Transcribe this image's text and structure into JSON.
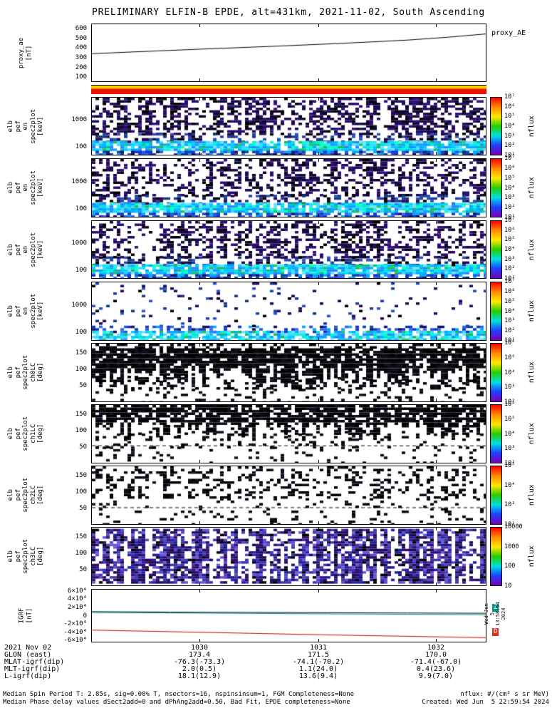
{
  "title": "PRELIMINARY ELFIN-B EPDE, alt=431km, 2021-11-02, South Ascending",
  "side_note": "Wed Jun  5 13:58:54 2024",
  "colors": {
    "colorbar_gradient": [
      "#ff0000",
      "#ff8c00",
      "#ffe800",
      "#28cc00",
      "#00e0e0",
      "#1f3fff",
      "#7a00b4"
    ],
    "axis": "#000000"
  },
  "palettes": {
    "dark": [
      "#000000",
      "#120428",
      "#23084d",
      "#1a1060",
      "#2e0b6e",
      "#0d0d30",
      "#35127a"
    ],
    "mix": [
      "#1a1060",
      "#23084d",
      "#1f3fa0",
      "#123c80",
      "#000000",
      "#2e4fc0"
    ],
    "blue": [
      "#1133cc",
      "#2255dd",
      "#0a43b0",
      "#3366ee",
      "#1a1060",
      "#00aaff"
    ],
    "bright": [
      "#00ccff",
      "#00aaff",
      "#35ddff",
      "#00e5df",
      "#2288ff",
      "#00ffc8",
      "#12c06a",
      "#6fe3ff",
      "#00b0ff"
    ],
    "black": [
      "#000000",
      "#08060d",
      "#120f1c"
    ],
    "ch3": [
      "#1a1060",
      "#35127a",
      "#2e0b6e",
      "#000000",
      "#4433aa",
      "#5a48cc",
      "#3a3aa0",
      "#23084d",
      "#6a58dd",
      "#2020a8"
    ]
  },
  "chart_data": [
    {
      "id": "proxy_ae",
      "type": "line",
      "left_label_lines": [
        "proxy_ae",
        "[nT]"
      ],
      "right_label": "proxy_AE",
      "ylim": [
        50,
        650
      ],
      "yticks": [
        {
          "v": 600,
          "label": "600"
        },
        {
          "v": 500,
          "label": "500"
        },
        {
          "v": 400,
          "label": "400"
        },
        {
          "v": 300,
          "label": "300"
        },
        {
          "v": 200,
          "label": "200"
        },
        {
          "v": 100,
          "label": "100"
        }
      ],
      "series": [
        {
          "name": "proxy_AE",
          "color": "#000000",
          "x": [
            0,
            0.1,
            0.2,
            0.3,
            0.4,
            0.5,
            0.6,
            0.7,
            0.8,
            0.9,
            1
          ],
          "y": [
            340,
            358,
            375,
            392,
            408,
            425,
            443,
            462,
            483,
            512,
            548
          ]
        }
      ]
    },
    {
      "id": "strip",
      "type": "strip",
      "colors": [
        "#000000",
        "#ffd700",
        "#ff8c00",
        "#e81200"
      ]
    },
    {
      "id": "en0",
      "type": "spectrogram",
      "left_label_lines": [
        "elb",
        "pef",
        "en",
        "spec2plot",
        "[keV]"
      ],
      "ylog": true,
      "ylim": [
        50,
        7000
      ],
      "yticks": [
        {
          "v": 1000,
          "label": "1000"
        },
        {
          "v": 100,
          "label": "100"
        }
      ],
      "colorbar": {
        "label": "nflux",
        "ticks": [
          "10⁷",
          "10⁶",
          "10⁵",
          "10⁴",
          "10³",
          "10²",
          "10¹"
        ]
      },
      "seed": 11,
      "bands": [
        {
          "y0": 0,
          "y1": 0.62,
          "density": 0.5,
          "palette": "dark"
        },
        {
          "y0": 0.62,
          "y1": 0.76,
          "density": 0.42,
          "palette": "mix"
        },
        {
          "y0": 0.76,
          "y1": 0.93,
          "density": 0.96,
          "palette": "bright"
        },
        {
          "y0": 0.93,
          "y1": 1,
          "density": 0.75,
          "palette": "blue"
        }
      ]
    },
    {
      "id": "en1",
      "type": "spectrogram",
      "left_label_lines": [
        "elb",
        "pef",
        "en",
        "spec2plot",
        "[keV]"
      ],
      "ylog": true,
      "ylim": [
        50,
        7000
      ],
      "yticks": [
        {
          "v": 1000,
          "label": "1000"
        },
        {
          "v": 100,
          "label": "100"
        }
      ],
      "colorbar": {
        "label": "nflux",
        "ticks": [
          "10⁷",
          "10⁶",
          "10⁵",
          "10⁴",
          "10³",
          "10²",
          "10¹"
        ]
      },
      "seed": 22,
      "bands": [
        {
          "y0": 0,
          "y1": 0.62,
          "density": 0.42,
          "palette": "dark"
        },
        {
          "y0": 0.62,
          "y1": 0.76,
          "density": 0.38,
          "palette": "mix"
        },
        {
          "y0": 0.76,
          "y1": 0.93,
          "density": 0.95,
          "palette": "bright"
        },
        {
          "y0": 0.93,
          "y1": 1,
          "density": 0.7,
          "palette": "blue"
        }
      ]
    },
    {
      "id": "en2",
      "type": "spectrogram",
      "left_label_lines": [
        "elb",
        "pef",
        "en",
        "spec2plot",
        "[keV]"
      ],
      "ylog": true,
      "ylim": [
        50,
        7000
      ],
      "yticks": [
        {
          "v": 1000,
          "label": "1000"
        },
        {
          "v": 100,
          "label": "100"
        }
      ],
      "colorbar": {
        "label": "nflux",
        "ticks": [
          "10⁷",
          "10⁶",
          "10⁵",
          "10⁴",
          "10³",
          "10²",
          "10¹"
        ]
      },
      "seed": 33,
      "bands": [
        {
          "y0": 0,
          "y1": 0.62,
          "density": 0.46,
          "palette": "dark"
        },
        {
          "y0": 0.62,
          "y1": 0.76,
          "density": 0.4,
          "palette": "mix"
        },
        {
          "y0": 0.76,
          "y1": 0.93,
          "density": 0.95,
          "palette": "bright"
        },
        {
          "y0": 0.93,
          "y1": 1,
          "density": 0.72,
          "palette": "blue"
        }
      ]
    },
    {
      "id": "en3",
      "type": "spectrogram",
      "left_label_lines": [
        "elb",
        "pef",
        "en",
        "spec2plot",
        "[keV]"
      ],
      "ylog": true,
      "ylim": [
        50,
        7000
      ],
      "yticks": [
        {
          "v": 1000,
          "label": "1000"
        },
        {
          "v": 100,
          "label": "100"
        }
      ],
      "colorbar": {
        "label": "nflux",
        "ticks": [
          "10⁷",
          "10⁶",
          "10⁵",
          "10⁴",
          "10³",
          "10²",
          "10¹"
        ]
      },
      "seed": 44,
      "bands": [
        {
          "y0": 0,
          "y1": 0.75,
          "density": 0.07,
          "palette": "mix"
        },
        {
          "y0": 0.75,
          "y1": 0.84,
          "density": 0.45,
          "palette": "blue"
        },
        {
          "y0": 0.84,
          "y1": 1,
          "density": 0.88,
          "palette": "bright"
        }
      ]
    },
    {
      "id": "ch0",
      "type": "spectrogram",
      "left_label_lines": [
        "elb",
        "pef",
        "spec2plot",
        "ch0LC",
        "[deg]"
      ],
      "ylim": [
        0,
        180
      ],
      "yticks": [
        {
          "v": 150,
          "label": "150"
        },
        {
          "v": 100,
          "label": "100"
        },
        {
          "v": 50,
          "label": "50"
        }
      ],
      "colorbar": {
        "label": "nflux",
        "ticks": [
          "10⁶",
          "10⁵",
          "10⁴",
          "10³",
          "10²"
        ]
      },
      "seed": 55,
      "bands": [
        {
          "y0": 0,
          "y1": 0.08,
          "density": 0.35,
          "palette": "black"
        },
        {
          "y0": 0.08,
          "y1": 0.58,
          "density": 0.93,
          "palette": "black",
          "ragged": true
        },
        {
          "y0": 0.58,
          "y1": 0.78,
          "density": 0.4,
          "palette": "black"
        },
        {
          "y0": 0.78,
          "y1": 1,
          "density": 0.15,
          "palette": "black"
        }
      ]
    },
    {
      "id": "ch1",
      "type": "spectrogram",
      "left_label_lines": [
        "elb",
        "pef",
        "spec2plot",
        "ch1LC",
        "[deg]"
      ],
      "ylim": [
        0,
        180
      ],
      "yticks": [
        {
          "v": 150,
          "label": "150"
        },
        {
          "v": 100,
          "label": "100"
        },
        {
          "v": 50,
          "label": "50"
        }
      ],
      "colorbar": {
        "label": "nflux",
        "ticks": [
          "10⁶",
          "10⁵",
          "10⁴",
          "10³",
          "10²"
        ]
      },
      "seed": 66,
      "dashed_lines": [
        0.7
      ],
      "bands": [
        {
          "y0": 0,
          "y1": 0.45,
          "density": 0.85,
          "palette": "black",
          "ragged": true
        },
        {
          "y0": 0.45,
          "y1": 0.72,
          "density": 0.2,
          "palette": "black"
        },
        {
          "y0": 0.72,
          "y1": 1,
          "density": 0.1,
          "palette": "black"
        }
      ]
    },
    {
      "id": "ch2",
      "type": "spectrogram",
      "left_label_lines": [
        "elb",
        "pef",
        "spec2plot",
        "ch2LC",
        "[deg]"
      ],
      "ylim": [
        0,
        180
      ],
      "yticks": [
        {
          "v": 150,
          "label": "150"
        },
        {
          "v": 100,
          "label": "100"
        },
        {
          "v": 50,
          "label": "50"
        }
      ],
      "colorbar": {
        "label": "nflux",
        "ticks": [
          "10⁵",
          "10⁴",
          "10³",
          "10²"
        ]
      },
      "seed": 77,
      "dashed_lines": [
        0.71
      ],
      "bands": [
        {
          "y0": 0,
          "y1": 0.55,
          "density": 0.3,
          "palette": "black"
        },
        {
          "y0": 0.55,
          "y1": 1,
          "density": 0.12,
          "palette": "black"
        }
      ]
    },
    {
      "id": "ch3",
      "type": "spectrogram",
      "left_label_lines": [
        "elb",
        "pef",
        "spec2plot",
        "ch3LC",
        "[deg]"
      ],
      "ylim": [
        0,
        180
      ],
      "yticks": [
        {
          "v": 150,
          "label": "150"
        },
        {
          "v": 100,
          "label": "100"
        },
        {
          "v": 50,
          "label": "50"
        }
      ],
      "colorbar": {
        "label": "nflux",
        "ticks": [
          "10000",
          "1000",
          "100",
          "10"
        ]
      },
      "seed": 88,
      "bands": [
        {
          "y0": 0.02,
          "y1": 0.97,
          "density": 0.72,
          "palette": "ch3"
        }
      ]
    },
    {
      "id": "igrf",
      "type": "line",
      "left_label_lines": [
        "IGRF",
        "[nT]"
      ],
      "ylim": [
        -65000,
        65000
      ],
      "yticks": [
        {
          "v": 60000,
          "label": "6×10⁴"
        },
        {
          "v": 40000,
          "label": "4×10⁴"
        },
        {
          "v": 20000,
          "label": "2×10⁴"
        },
        {
          "v": 0,
          "label": "0"
        },
        {
          "v": -20000,
          "label": "-2×10⁴"
        },
        {
          "v": -40000,
          "label": "-4×10⁴"
        },
        {
          "v": -60000,
          "label": "-6×10⁴"
        }
      ],
      "series": [
        {
          "name": "",
          "color": "#000000",
          "x": [
            0,
            0.2,
            0.4,
            0.6,
            0.8,
            1
          ],
          "y": [
            10000,
            9000,
            8200,
            7400,
            6700,
            6000
          ]
        },
        {
          "name": "Z",
          "color": "#008b8b",
          "x": [
            0,
            0.2,
            0.4,
            0.6,
            0.8,
            1
          ],
          "y": [
            8000,
            6800,
            5600,
            4500,
            3400,
            2400
          ]
        },
        {
          "name": "D",
          "color": "#cc0000",
          "x": [
            0,
            0.2,
            0.4,
            0.6,
            0.8,
            1
          ],
          "y": [
            -36000,
            -40000,
            -44000,
            -48000,
            -51500,
            -55000
          ]
        }
      ],
      "markers": [
        {
          "label": "Z",
          "color": "#009688"
        },
        {
          "label": "D",
          "color": "#e03020"
        }
      ]
    }
  ],
  "bottom_axis": {
    "date_label": "2021 Nov 02",
    "time_ticks": [
      "1030",
      "1031",
      "1032"
    ],
    "rows": [
      {
        "label": "GLON (east)",
        "values": [
          "173.4",
          "171.5",
          "170.0"
        ]
      },
      {
        "label": "MLAT-igrf(dip)",
        "values": [
          "-76.3(-73.3)",
          "-74.1(-70.2)",
          "-71.4(-67.0)"
        ]
      },
      {
        "label": "MLT-igrf(dip)",
        "values": [
          "2.0(0.5)",
          "1.1(24.0)",
          "0.4(23.6)"
        ]
      },
      {
        "label": "L-igrf(dip)",
        "values": [
          "18.1(12.9)",
          "13.6(9.4)",
          "9.9(7.0)"
        ]
      }
    ]
  },
  "footer": {
    "line1": "Median Spin Period T: 2.85s, sig=0.00% T, nsectors=16, nspinsinsum=1, FGM Completeness=None",
    "line2": "Median Phase delay values dSect2add=0 and dPhAng2add=0.50, Bad Fit, EPDE completeness=None",
    "nflux_units": "nflux: #/(cm² s sr MeV)",
    "created": "Created: Wed Jun  5 22:59:54 2024"
  }
}
